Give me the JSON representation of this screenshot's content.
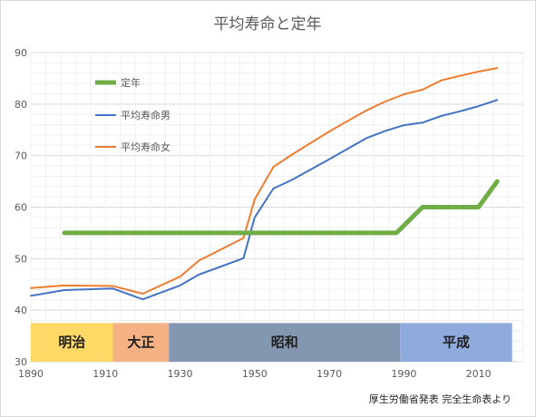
{
  "chart_data": {
    "type": "line",
    "title": "平均寿命と定年",
    "xlim": [
      1890,
      2022
    ],
    "ylim": [
      30,
      90
    ],
    "x_ticks": [
      1890,
      1910,
      1930,
      1950,
      1970,
      1990,
      2010
    ],
    "y_ticks": [
      30,
      40,
      50,
      60,
      70,
      80,
      90
    ],
    "grid": true,
    "legend_position": "top-left",
    "series": [
      {
        "name": "定年",
        "color": "#70ad47",
        "points": [
          [
            1899,
            55
          ],
          [
            1988,
            55
          ],
          [
            1995,
            60
          ],
          [
            2010,
            60
          ],
          [
            2015,
            65
          ]
        ]
      },
      {
        "name": "平均寿命男",
        "color": "#4472c4",
        "points": [
          [
            1890,
            42.8
          ],
          [
            1899,
            43.9
          ],
          [
            1912,
            44.2
          ],
          [
            1920,
            42.1
          ],
          [
            1930,
            44.8
          ],
          [
            1935,
            46.9
          ],
          [
            1947,
            50.1
          ],
          [
            1950,
            58.0
          ],
          [
            1955,
            63.6
          ],
          [
            1960,
            65.3
          ],
          [
            1970,
            69.3
          ],
          [
            1980,
            73.4
          ],
          [
            1985,
            74.8
          ],
          [
            1990,
            75.9
          ],
          [
            1995,
            76.4
          ],
          [
            2000,
            77.7
          ],
          [
            2005,
            78.6
          ],
          [
            2010,
            79.6
          ],
          [
            2015,
            80.8
          ]
        ]
      },
      {
        "name": "平均寿命女",
        "color": "#ed7d31",
        "points": [
          [
            1890,
            44.3
          ],
          [
            1899,
            44.8
          ],
          [
            1912,
            44.7
          ],
          [
            1920,
            43.2
          ],
          [
            1930,
            46.5
          ],
          [
            1935,
            49.6
          ],
          [
            1947,
            54.0
          ],
          [
            1950,
            61.5
          ],
          [
            1955,
            67.8
          ],
          [
            1960,
            70.2
          ],
          [
            1970,
            74.7
          ],
          [
            1980,
            78.8
          ],
          [
            1985,
            80.5
          ],
          [
            1990,
            81.9
          ],
          [
            1995,
            82.8
          ],
          [
            2000,
            84.6
          ],
          [
            2005,
            85.5
          ],
          [
            2010,
            86.3
          ],
          [
            2015,
            87.0
          ]
        ]
      }
    ],
    "eras": [
      {
        "label": "明治",
        "start": 1890,
        "end": 1912,
        "color": "#ffd966"
      },
      {
        "label": "大正",
        "start": 1912,
        "end": 1927,
        "color": "#f4b183"
      },
      {
        "label": "昭和",
        "start": 1927,
        "end": 1989,
        "color": "#8497b0"
      },
      {
        "label": "平成",
        "start": 1989,
        "end": 2019,
        "color": "#8faadc"
      }
    ],
    "era_band_range": [
      30,
      37.5
    ],
    "source_note": "厚生労働省発表 完全生命表より"
  }
}
